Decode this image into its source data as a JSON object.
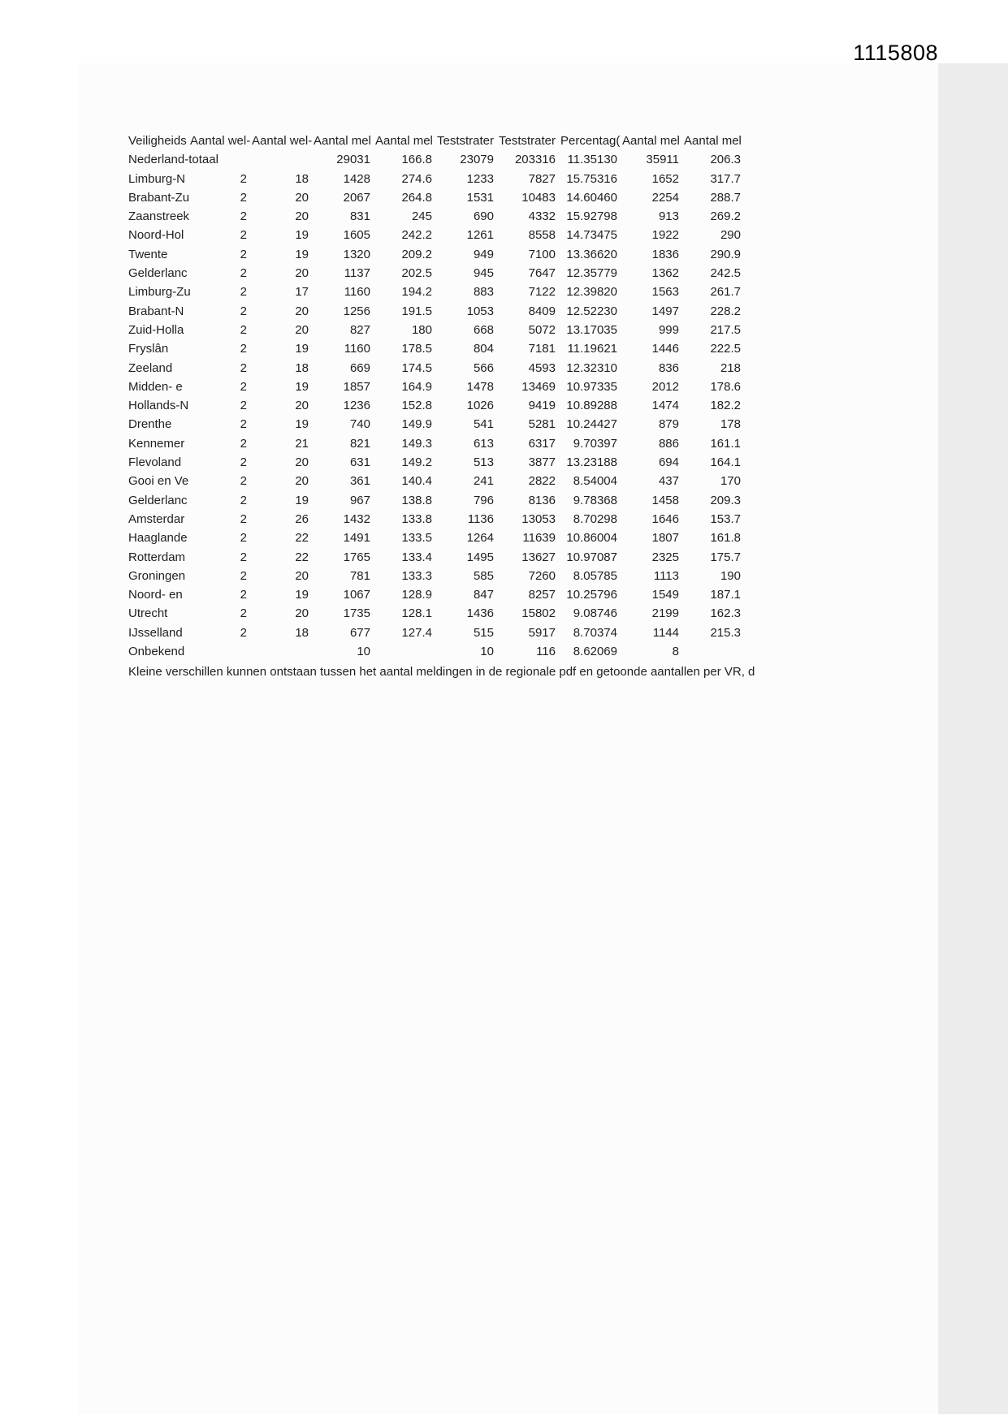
{
  "page": {
    "stamp": "1115808",
    "footnote": "Kleine verschillen kunnen ontstaan tussen het aantal meldingen in de regionale pdf en getoonde aantallen per VR, d"
  },
  "colors": {
    "page_background": "#ffffff",
    "scan_background": "#fcfcfc",
    "margin_band": "#ececec",
    "text": "#1f1f1f"
  },
  "table": {
    "headers": [
      "Veiligheids",
      "Aantal wel-",
      "Aantal wel-",
      "Aantal mel",
      "Aantal mel",
      "Teststrater",
      "Teststrater",
      "Percentag(",
      "Aantal mel",
      "Aantal mel"
    ],
    "rows": [
      {
        "name": "Nederland-totaal",
        "cells": [
          "",
          "",
          "29031",
          "166.8",
          "23079",
          "203316",
          "11.35130",
          "35911",
          "206.3"
        ]
      },
      {
        "name": "Limburg-N",
        "cells": [
          "2",
          "18",
          "1428",
          "274.6",
          "1233",
          "7827",
          "15.75316",
          "1652",
          "317.7"
        ]
      },
      {
        "name": "Brabant-Zu",
        "cells": [
          "2",
          "20",
          "2067",
          "264.8",
          "1531",
          "10483",
          "14.60460",
          "2254",
          "288.7"
        ]
      },
      {
        "name": "Zaanstreek",
        "cells": [
          "2",
          "20",
          "831",
          "245",
          "690",
          "4332",
          "15.92798",
          "913",
          "269.2"
        ]
      },
      {
        "name": "Noord-Hol",
        "cells": [
          "2",
          "19",
          "1605",
          "242.2",
          "1261",
          "8558",
          "14.73475",
          "1922",
          "290"
        ]
      },
      {
        "name": "Twente",
        "cells": [
          "2",
          "19",
          "1320",
          "209.2",
          "949",
          "7100",
          "13.36620",
          "1836",
          "290.9"
        ]
      },
      {
        "name": "Gelderlanc",
        "cells": [
          "2",
          "20",
          "1137",
          "202.5",
          "945",
          "7647",
          "12.35779",
          "1362",
          "242.5"
        ]
      },
      {
        "name": "Limburg-Zu",
        "cells": [
          "2",
          "17",
          "1160",
          "194.2",
          "883",
          "7122",
          "12.39820",
          "1563",
          "261.7"
        ]
      },
      {
        "name": "Brabant-N",
        "cells": [
          "2",
          "20",
          "1256",
          "191.5",
          "1053",
          "8409",
          "12.52230",
          "1497",
          "228.2"
        ]
      },
      {
        "name": "Zuid-Holla",
        "cells": [
          "2",
          "20",
          "827",
          "180",
          "668",
          "5072",
          "13.17035",
          "999",
          "217.5"
        ]
      },
      {
        "name": "Fryslân",
        "cells": [
          "2",
          "19",
          "1160",
          "178.5",
          "804",
          "7181",
          "11.19621",
          "1446",
          "222.5"
        ]
      },
      {
        "name": "Zeeland",
        "cells": [
          "2",
          "18",
          "669",
          "174.5",
          "566",
          "4593",
          "12.32310",
          "836",
          "218"
        ]
      },
      {
        "name": "Midden- e",
        "cells": [
          "2",
          "19",
          "1857",
          "164.9",
          "1478",
          "13469",
          "10.97335",
          "2012",
          "178.6"
        ]
      },
      {
        "name": "Hollands-N",
        "cells": [
          "2",
          "20",
          "1236",
          "152.8",
          "1026",
          "9419",
          "10.89288",
          "1474",
          "182.2"
        ]
      },
      {
        "name": "Drenthe",
        "cells": [
          "2",
          "19",
          "740",
          "149.9",
          "541",
          "5281",
          "10.24427",
          "879",
          "178"
        ]
      },
      {
        "name": "Kennemer",
        "cells": [
          "2",
          "21",
          "821",
          "149.3",
          "613",
          "6317",
          "9.70397",
          "886",
          "161.1"
        ]
      },
      {
        "name": "Flevoland",
        "cells": [
          "2",
          "20",
          "631",
          "149.2",
          "513",
          "3877",
          "13.23188",
          "694",
          "164.1"
        ]
      },
      {
        "name": "Gooi en Ve",
        "cells": [
          "2",
          "20",
          "361",
          "140.4",
          "241",
          "2822",
          "8.54004",
          "437",
          "170"
        ]
      },
      {
        "name": "Gelderlanc",
        "cells": [
          "2",
          "19",
          "967",
          "138.8",
          "796",
          "8136",
          "9.78368",
          "1458",
          "209.3"
        ]
      },
      {
        "name": "Amsterdar",
        "cells": [
          "2",
          "26",
          "1432",
          "133.8",
          "1136",
          "13053",
          "8.70298",
          "1646",
          "153.7"
        ]
      },
      {
        "name": "Haaglande",
        "cells": [
          "2",
          "22",
          "1491",
          "133.5",
          "1264",
          "11639",
          "10.86004",
          "1807",
          "161.8"
        ]
      },
      {
        "name": "Rotterdam",
        "cells": [
          "2",
          "22",
          "1765",
          "133.4",
          "1495",
          "13627",
          "10.97087",
          "2325",
          "175.7"
        ]
      },
      {
        "name": "Groningen",
        "cells": [
          "2",
          "20",
          "781",
          "133.3",
          "585",
          "7260",
          "8.05785",
          "1113",
          "190"
        ]
      },
      {
        "name": "Noord- en",
        "cells": [
          "2",
          "19",
          "1067",
          "128.9",
          "847",
          "8257",
          "10.25796",
          "1549",
          "187.1"
        ]
      },
      {
        "name": "Utrecht",
        "cells": [
          "2",
          "20",
          "1735",
          "128.1",
          "1436",
          "15802",
          "9.08746",
          "2199",
          "162.3"
        ]
      },
      {
        "name": "IJsselland",
        "cells": [
          "2",
          "18",
          "677",
          "127.4",
          "515",
          "5917",
          "8.70374",
          "1144",
          "215.3"
        ]
      },
      {
        "name": "Onbekend",
        "cells": [
          "",
          "",
          "10",
          "",
          "10",
          "116",
          "8.62069",
          "8",
          ""
        ]
      }
    ]
  }
}
